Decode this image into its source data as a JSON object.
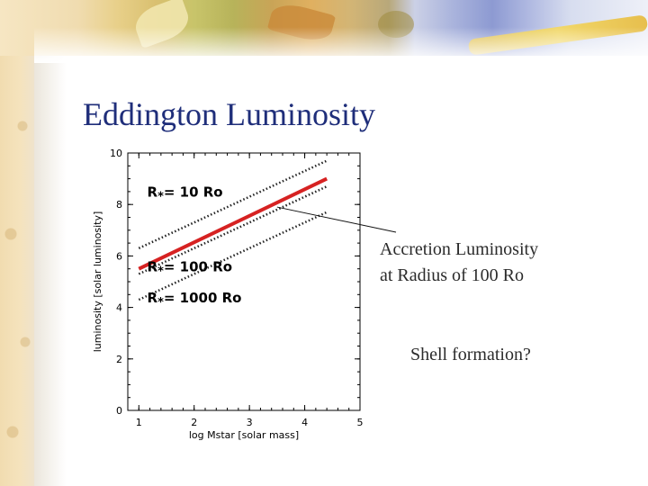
{
  "slide": {
    "title": "Eddington Luminosity",
    "annotation_lines": [
      "Accretion Luminosity",
      "at Radius of 100 Ro"
    ],
    "question": "Shell formation?",
    "colors": {
      "title": "#1f2e7a",
      "accent_line": "#d62222"
    }
  },
  "chart_data": {
    "type": "line",
    "xlabel": "log Mstar [solar mass]",
    "ylabel": "luminosity [solar luminosity]",
    "xlim": [
      0.8,
      5.0
    ],
    "ylim": [
      0,
      10
    ],
    "xticks": [
      1,
      2,
      3,
      4,
      5
    ],
    "yticks": [
      0,
      2,
      4,
      6,
      8,
      10
    ],
    "grid": false,
    "series": [
      {
        "name": "R* = 10 Ro",
        "style": "dotted",
        "color": "#222222",
        "x": [
          1.0,
          2.0,
          3.0,
          4.0,
          4.4
        ],
        "y": [
          6.3,
          7.3,
          8.3,
          9.3,
          9.7
        ]
      },
      {
        "name": "R* = 100 Ro",
        "style": "dotted",
        "color": "#222222",
        "x": [
          1.0,
          2.0,
          3.0,
          4.0,
          4.4
        ],
        "y": [
          5.3,
          6.3,
          7.3,
          8.3,
          8.7
        ]
      },
      {
        "name": "R* = 1000 Ro",
        "style": "dotted",
        "color": "#222222",
        "x": [
          1.0,
          2.0,
          3.0,
          4.0,
          4.4
        ],
        "y": [
          4.3,
          5.3,
          6.3,
          7.3,
          7.7
        ]
      },
      {
        "name": "",
        "style": "solid",
        "color": "#d62222",
        "x": [
          1.0,
          4.4
        ],
        "y": [
          5.5,
          9.0
        ]
      }
    ],
    "labels": [
      {
        "text": "R",
        "sub": "*",
        "rest": "= 10 Ro",
        "x": 1.15,
        "y": 8.3
      },
      {
        "text": "R",
        "sub": "*",
        "rest": "= 100 Ro",
        "x": 1.15,
        "y": 5.4
      },
      {
        "text": "R",
        "sub": "*",
        "rest": "= 1000 Ro",
        "x": 1.15,
        "y": 4.2
      }
    ],
    "pointer": {
      "x": 3.5,
      "y": 7.9
    }
  }
}
